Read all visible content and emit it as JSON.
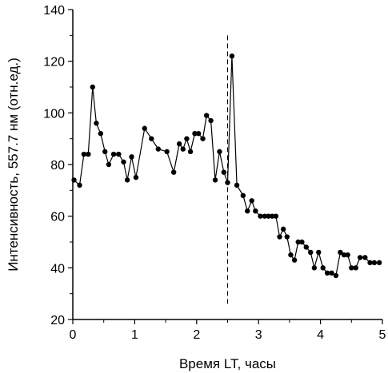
{
  "chart_data": {
    "type": "line",
    "title": "",
    "xlabel": "Время LT, часы",
    "ylabel": "Интенсивность, 557.7 нм (отн.ед.)",
    "xlim": [
      0,
      5
    ],
    "ylim": [
      20,
      140
    ],
    "xticks": [
      "0",
      "1",
      "2",
      "3",
      "4",
      "5"
    ],
    "yticks": [
      "20",
      "40",
      "60",
      "80",
      "100",
      "120",
      "140"
    ],
    "grid": false,
    "legend": "none",
    "marker": "circle",
    "line_color": "#000000",
    "vline": {
      "x": 2.5,
      "style": "dashed"
    },
    "series": [
      {
        "x": [
          0.02,
          0.11,
          0.18,
          0.25,
          0.32,
          0.38,
          0.45,
          0.52,
          0.58,
          0.66,
          0.74,
          0.82,
          0.88,
          0.95,
          1.02,
          1.16,
          1.27,
          1.38,
          1.52,
          1.63,
          1.72,
          1.78,
          1.84,
          1.9,
          1.97,
          2.03,
          2.1,
          2.16,
          2.23,
          2.3,
          2.37,
          2.44,
          2.5,
          2.57,
          2.65,
          2.75,
          2.82,
          2.89,
          2.95,
          3.03,
          3.1,
          3.16,
          3.22,
          3.28,
          3.34,
          3.4,
          3.46,
          3.52,
          3.58,
          3.64,
          3.7,
          3.77,
          3.84,
          3.9,
          3.97,
          4.04,
          4.11,
          4.18,
          4.25,
          4.32,
          4.38,
          4.44,
          4.5,
          4.57,
          4.64,
          4.72,
          4.8,
          4.87,
          4.95
        ],
        "values": [
          74,
          72,
          84,
          84,
          110,
          96,
          92,
          85,
          80,
          84,
          84,
          81,
          74,
          83,
          75,
          94,
          90,
          86,
          85,
          77,
          88,
          86,
          90,
          85,
          92,
          92,
          90,
          99,
          97,
          74,
          85,
          77,
          73,
          122,
          72,
          68,
          62,
          66,
          62,
          60,
          60,
          60,
          60,
          60,
          52,
          55,
          52,
          45,
          43,
          50,
          50,
          48,
          46,
          40,
          46,
          40,
          38,
          38,
          37,
          46,
          45,
          45,
          40,
          40,
          44,
          44,
          42,
          42,
          42
        ]
      }
    ]
  }
}
